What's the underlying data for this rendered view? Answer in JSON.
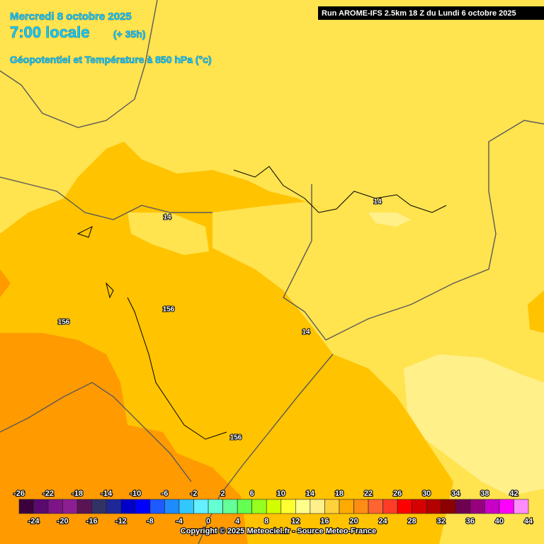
{
  "header": {
    "date": "Mercredi 8 octobre 2025",
    "time": "7:00 locale",
    "lead": "(+ 35h)",
    "parameter": "Géopotentiel et Température à 850 hPa (°c)",
    "run": "Run AROME-IFS 2.5km 18 Z du Lundi 6 octobre 2025"
  },
  "contour_labels": [
    14,
    14,
    156,
    156,
    14,
    156
  ],
  "colorbar": {
    "labels": [
      -26,
      -24,
      -22,
      -20,
      -18,
      -16,
      -14,
      -12,
      -10,
      -8,
      -6,
      -4,
      -2,
      0,
      2,
      4,
      6,
      8,
      10,
      12,
      14,
      16,
      18,
      20,
      22,
      24,
      26,
      28,
      30,
      32,
      34,
      36,
      38,
      40,
      42,
      44
    ],
    "colors": [
      "#3c003c",
      "#5a0a6e",
      "#7d1487",
      "#8c1e91",
      "#5a1455",
      "#323264",
      "#1e2896",
      "#0000c8",
      "#0000ff",
      "#1e5aff",
      "#1e8cff",
      "#32c8ff",
      "#64f0ff",
      "#64ffd2",
      "#64ff96",
      "#64ff50",
      "#96ff1e",
      "#d2ff00",
      "#ffff32",
      "#ffff8c",
      "#fff08c",
      "#ffd23c",
      "#ffaa00",
      "#ff8c14",
      "#ff6432",
      "#ff3c28",
      "#ff0000",
      "#d70000",
      "#b40000",
      "#8c0000",
      "#6e0050",
      "#96007d",
      "#c800c8",
      "#ff00ff",
      "#ff8cff"
    ]
  },
  "footer": {
    "copyright": "Copyright © 2025 Meteociel.fr - Source Meteo-France"
  }
}
